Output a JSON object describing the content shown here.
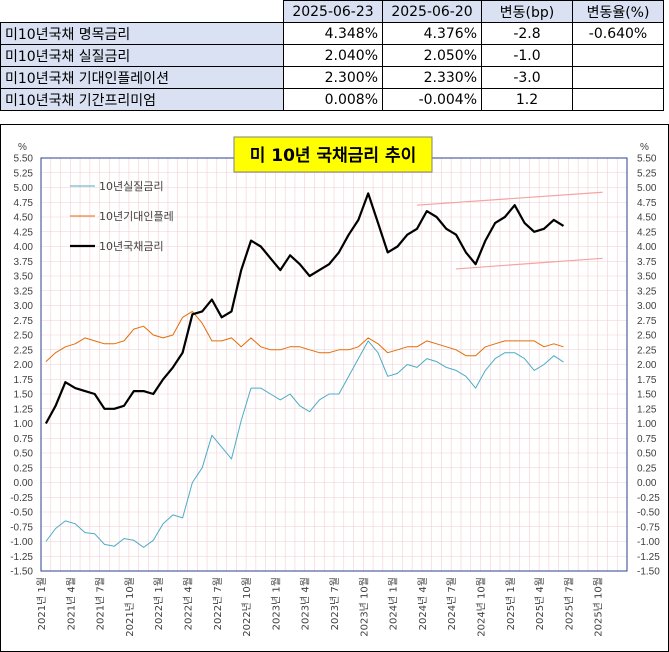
{
  "table": {
    "headers": [
      "",
      "2025-06-23",
      "2025-06-20",
      "변동(bp)",
      "변동율(%)"
    ],
    "rows": [
      {
        "label": "미10년국채 명목금리",
        "v1": "4.348%",
        "v2": "4.376%",
        "bp": "-2.8",
        "pct": "-0.640%"
      },
      {
        "label": "미10년국채 실질금리",
        "v1": "2.040%",
        "v2": "2.050%",
        "bp": "-1.0",
        "pct": ""
      },
      {
        "label": "미10년국채 기대인플레이션",
        "v1": "2.300%",
        "v2": "2.330%",
        "bp": "-3.0",
        "pct": ""
      },
      {
        "label": "미10년국채 기간프리미엄",
        "v1": "0.008%",
        "v2": "-0.004%",
        "bp": "1.2",
        "pct": ""
      }
    ]
  },
  "chart_data": {
    "type": "line",
    "title": "미 10년 국채금리 추이",
    "unit_left": "%",
    "unit_right": "%",
    "ylim": [
      -1.5,
      5.5
    ],
    "ytick_step": 0.25,
    "xlabels": [
      "2021년 1월",
      "2021년 4월",
      "2021년 7월",
      "2021년 10월",
      "2022년 1월",
      "2022년 4월",
      "2022년 7월",
      "2022년 10월",
      "2023년 1월",
      "2023년 4월",
      "2023년 7월",
      "2023년 10월",
      "2024년 1월",
      "2024년 4월",
      "2024년 7월",
      "2024년 10월",
      "2025년 1월",
      "2025년 4월",
      "2025년 7월",
      "2025년 10월"
    ],
    "x": [
      "2021-01",
      "2021-02",
      "2021-03",
      "2021-04",
      "2021-05",
      "2021-06",
      "2021-07",
      "2021-08",
      "2021-09",
      "2021-10",
      "2021-11",
      "2021-12",
      "2022-01",
      "2022-02",
      "2022-03",
      "2022-04",
      "2022-05",
      "2022-06",
      "2022-07",
      "2022-08",
      "2022-09",
      "2022-10",
      "2022-11",
      "2022-12",
      "2023-01",
      "2023-02",
      "2023-03",
      "2023-04",
      "2023-05",
      "2023-06",
      "2023-07",
      "2023-08",
      "2023-09",
      "2023-10",
      "2023-11",
      "2023-12",
      "2024-01",
      "2024-02",
      "2024-03",
      "2024-04",
      "2024-05",
      "2024-06",
      "2024-07",
      "2024-08",
      "2024-09",
      "2024-10",
      "2024-11",
      "2024-12",
      "2025-01",
      "2025-02",
      "2025-03",
      "2025-04",
      "2025-05",
      "2025-06"
    ],
    "series": [
      {
        "name": "10년실질금리",
        "color": "#4bacc6",
        "width": 1,
        "values": [
          -1.0,
          -0.78,
          -0.65,
          -0.7,
          -0.85,
          -0.87,
          -1.05,
          -1.08,
          -0.95,
          -0.98,
          -1.1,
          -0.98,
          -0.7,
          -0.55,
          -0.6,
          0.0,
          0.25,
          0.8,
          0.6,
          0.4,
          1.05,
          1.6,
          1.6,
          1.5,
          1.4,
          1.5,
          1.3,
          1.2,
          1.4,
          1.5,
          1.5,
          1.8,
          2.1,
          2.4,
          2.2,
          1.8,
          1.85,
          2.0,
          1.95,
          2.1,
          2.05,
          1.95,
          1.9,
          1.8,
          1.6,
          1.9,
          2.1,
          2.2,
          2.2,
          2.1,
          1.9,
          2.0,
          2.15,
          2.04
        ]
      },
      {
        "name": "10년기대인플레",
        "color": "#e36c09",
        "width": 1,
        "values": [
          2.05,
          2.2,
          2.3,
          2.35,
          2.45,
          2.4,
          2.35,
          2.35,
          2.4,
          2.6,
          2.65,
          2.5,
          2.45,
          2.5,
          2.8,
          2.9,
          2.7,
          2.4,
          2.4,
          2.45,
          2.3,
          2.45,
          2.3,
          2.25,
          2.25,
          2.3,
          2.3,
          2.25,
          2.2,
          2.2,
          2.25,
          2.25,
          2.3,
          2.45,
          2.35,
          2.2,
          2.25,
          2.3,
          2.3,
          2.4,
          2.35,
          2.3,
          2.25,
          2.15,
          2.15,
          2.3,
          2.35,
          2.4,
          2.4,
          2.4,
          2.4,
          2.3,
          2.35,
          2.3
        ]
      },
      {
        "name": "10년국채금리",
        "color": "#000000",
        "width": 2.2,
        "values": [
          1.0,
          1.3,
          1.7,
          1.6,
          1.55,
          1.5,
          1.25,
          1.25,
          1.3,
          1.55,
          1.55,
          1.5,
          1.75,
          1.95,
          2.2,
          2.85,
          2.9,
          3.1,
          2.8,
          2.9,
          3.6,
          4.1,
          4.0,
          3.8,
          3.6,
          3.85,
          3.7,
          3.5,
          3.6,
          3.7,
          3.9,
          4.2,
          4.45,
          4.9,
          4.4,
          3.9,
          4.0,
          4.2,
          4.3,
          4.6,
          4.5,
          4.3,
          4.2,
          3.9,
          3.7,
          4.1,
          4.4,
          4.5,
          4.7,
          4.4,
          4.25,
          4.3,
          4.45,
          4.35
        ]
      }
    ],
    "trendlines": [
      {
        "from": [
          "2024-03",
          4.7
        ],
        "to": [
          "2025-10",
          4.92
        ],
        "color": "#f4a3a3"
      },
      {
        "from": [
          "2024-07",
          3.62
        ],
        "to": [
          "2025-10",
          3.8
        ],
        "color": "#f4a3a3"
      }
    ],
    "legend_position": "top-left",
    "grid": true
  }
}
